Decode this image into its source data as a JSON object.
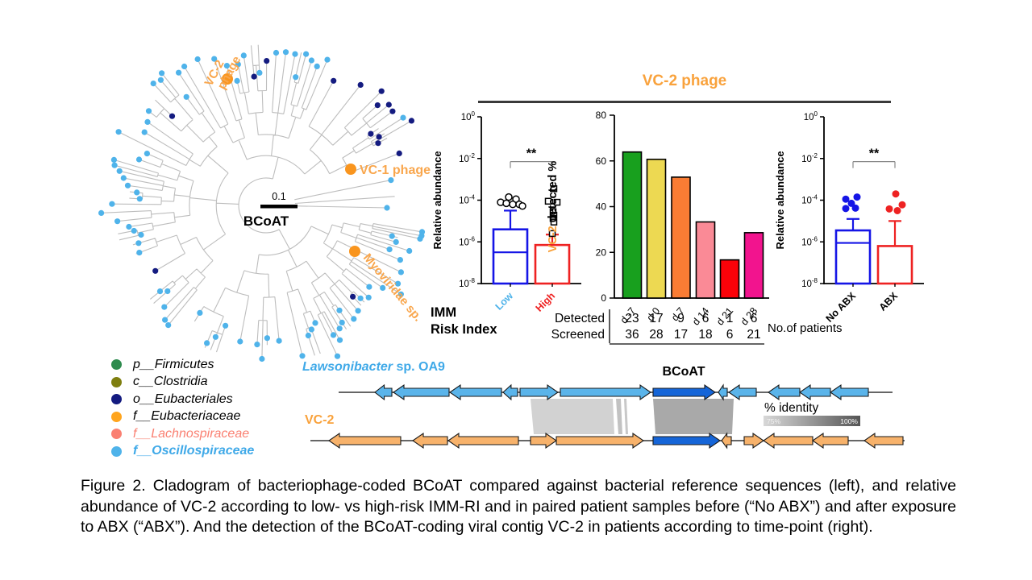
{
  "panel": {
    "title": "VC-2 phage",
    "title_color": "#F9A23C"
  },
  "cladogram": {
    "annotations": {
      "vc2_label_line1": "VC-2",
      "vc2_label_line2": "phage",
      "vc1_label": "VC-1 phage",
      "myoviridae_label": "Myoviridae sp.",
      "scale_value": "0.1",
      "gene_label": "BCoAT"
    },
    "branch_color": "#bdbdbd",
    "marker_color": "#F9951E",
    "label_color": "#F9A64C",
    "palette": {
      "lightblue": "#4FB3EA",
      "navy": "#141B80",
      "green": "#2E8B4E",
      "olive": "#7F7F10",
      "orange": "#FFA51E",
      "salmon": "#FA8072"
    }
  },
  "legend": {
    "items": [
      {
        "label": "p__Firmicutes",
        "dot_color": "#2E8B4E",
        "text_color": "#000000",
        "bold": false
      },
      {
        "label": "c__Clostridia",
        "dot_color": "#7F7F10",
        "text_color": "#000000",
        "bold": false
      },
      {
        "label": "o__Eubacteriales",
        "dot_color": "#141B80",
        "text_color": "#000000",
        "bold": false
      },
      {
        "label": "f__Eubacteriaceae",
        "dot_color": "#FFA51E",
        "text_color": "#000000",
        "bold": false
      },
      {
        "label": "f__Lachnospiraceae",
        "dot_color": "#FA8072",
        "text_color": "#FA8072",
        "bold": false
      },
      {
        "label": "f__Oscillospiraceae",
        "dot_color": "#4FB3EA",
        "text_color": "#3FA9E8",
        "bold": true
      }
    ]
  },
  "chart_data": [
    {
      "type": "box",
      "ylabel": "Relative abundance",
      "yscale": "log",
      "yticks_exp": [
        0,
        -2,
        -4,
        -6,
        -8
      ],
      "xlabel_lines": [
        "IMM",
        "Risk Index"
      ],
      "significance": "**",
      "groups": [
        {
          "label": "Low",
          "label_color": "#4FB3EA",
          "color": "#1515E6",
          "marker": "circle-open",
          "box_top_exp": -5.4,
          "box_bottom_exp": -8,
          "median_exp": -6.5,
          "whisker_top_exp": -4.5,
          "points_exp": [
            [
              -2,
              -3.85
            ],
            [
              7,
              -3.95
            ],
            [
              -12,
              -4.1
            ],
            [
              -5,
              -4.15
            ],
            [
              3,
              -4.2
            ],
            [
              11,
              -4.2
            ],
            [
              15,
              -4.28
            ]
          ]
        },
        {
          "label": "High",
          "label_color": "#EE2222",
          "color": "#EE2222",
          "marker": "square-open",
          "box_top_exp": -6.15,
          "box_bottom_exp": -8,
          "median_exp": null,
          "whisker_top_exp": -5.65,
          "points_exp": [
            [
              2,
              -3.45
            ],
            [
              -5,
              -4.05
            ],
            [
              6,
              -4.1
            ],
            [
              1,
              -4.55
            ],
            [
              2,
              -4.72
            ],
            [
              1,
              -4.88
            ],
            [
              2,
              -5.05
            ],
            [
              0,
              -5.6
            ]
          ]
        }
      ]
    },
    {
      "type": "bar",
      "ylabel_accent": "VC-2",
      "ylabel_rest": " detected %",
      "ylim": [
        0,
        80
      ],
      "yticks": [
        0,
        20,
        40,
        60,
        80
      ],
      "categories": [
        "d -7",
        "d 0",
        "d 7",
        "d 14",
        "d 21",
        "d 28"
      ],
      "values": [
        63.9,
        60.7,
        52.9,
        33.3,
        16.7,
        28.6
      ],
      "colors": [
        "#18A01E",
        "#EDD952",
        "#F97C34",
        "#FA8A96",
        "#FB0209",
        "#F2148E"
      ],
      "table": {
        "rows": [
          {
            "label": "Detected",
            "values": [
              23,
              17,
              9,
              6,
              1,
              6
            ]
          },
          {
            "label": "Screened",
            "values": [
              36,
              28,
              17,
              18,
              6,
              21
            ]
          }
        ],
        "note": "No.of patients"
      }
    },
    {
      "type": "box",
      "ylabel": "Relative abundance",
      "yscale": "log",
      "yticks_exp": [
        0,
        -2,
        -4,
        -6,
        -8
      ],
      "significance": "**",
      "groups": [
        {
          "label": "No ABX",
          "label_color": "#000000",
          "color": "#1515E6",
          "marker": "circle-filled",
          "box_top_exp": -5.45,
          "box_bottom_exp": -8,
          "median_exp": -6.05,
          "whisker_top_exp": -4.9,
          "points_exp": [
            [
              -9,
              -3.95
            ],
            [
              5,
              -3.85
            ],
            [
              -9,
              -4.4
            ],
            [
              3,
              -4.38
            ],
            [
              -2,
              -4.15
            ]
          ]
        },
        {
          "label": "ABX",
          "label_color": "#000000",
          "color": "#EE2222",
          "marker": "circle-filled",
          "box_top_exp": -6.2,
          "box_bottom_exp": -8,
          "median_exp": null,
          "whisker_top_exp": -5.0,
          "points_exp": [
            [
              1,
              -3.7
            ],
            [
              9,
              -4.22
            ],
            [
              -7,
              -4.42
            ],
            [
              3,
              -4.5
            ]
          ]
        }
      ]
    },
    {
      "type": "synteny",
      "bcoat_label": "BCoAT",
      "bcoat_color": "#1565D8",
      "tracks": [
        {
          "name_italic": "Lawsonibacter",
          "name_rest": " sp. OA9",
          "name_color": "#3FA9E8",
          "gene_color": "#5AB4EA",
          "y": 47,
          "line": [
            50,
            737
          ],
          "bcoat_index": 6,
          "genes": [
            [
              95,
              116,
              -1
            ],
            [
              118,
              187,
              -1
            ],
            [
              188,
              252,
              -1
            ],
            [
              254,
              272,
              -1
            ],
            [
              275,
              322,
              1
            ],
            [
              325,
              437,
              1
            ],
            [
              440,
              517,
              1
            ],
            [
              521,
              532,
              -1
            ],
            [
              534,
              568,
              -1
            ],
            [
              583,
              622,
              -1
            ],
            [
              622,
              660,
              -1
            ],
            [
              660,
              707,
              -1
            ]
          ]
        },
        {
          "name_italic": "",
          "name_rest": "VC-2",
          "name_color": "#F9A23C",
          "gene_color": "#F7B26B",
          "y": 107,
          "line": [
            15,
            752
          ],
          "bcoat_index": 5,
          "genes": [
            [
              38,
              127,
              -1
            ],
            [
              142,
              185,
              -1
            ],
            [
              186,
              273,
              -1
            ],
            [
              288,
              320,
              1
            ],
            [
              320,
              428,
              1
            ],
            [
              440,
              523,
              1
            ],
            [
              525,
              537,
              -1
            ],
            [
              553,
              577,
              1
            ],
            [
              577,
              638,
              -1
            ],
            [
              638,
              682,
              -1
            ],
            [
              702,
              750,
              -1
            ]
          ]
        }
      ],
      "homology_blocks": [
        {
          "top": [
            288,
            390
          ],
          "bottom": [
            292,
            392
          ],
          "fill": "#d2d2d2"
        },
        {
          "top": [
            394,
            400
          ],
          "bottom": [
            397,
            402
          ],
          "fill": "#c2c2c2"
        },
        {
          "top": [
            404,
            407
          ],
          "bottom": [
            406,
            409
          ],
          "fill": "#c8c8c8"
        },
        {
          "top": [
            440,
            540
          ],
          "bottom": [
            443,
            538
          ],
          "fill": "#a9a9a9"
        }
      ],
      "identity_legend": {
        "label": "% identity",
        "min": "75%",
        "max": "100%"
      }
    }
  ],
  "figure": {
    "caption": "Figure 2. Cladogram of bacteriophage-coded BCoAT compared against bacterial reference sequences (left), and relative abundance of VC-2 according to low- vs high-risk IMM-RI and in paired patient samples before (“No ABX”) and after exposure to ABX (“ABX”). And the detection of the BCoAT-coding viral contig VC-2 in patients according to time-point (right)."
  }
}
